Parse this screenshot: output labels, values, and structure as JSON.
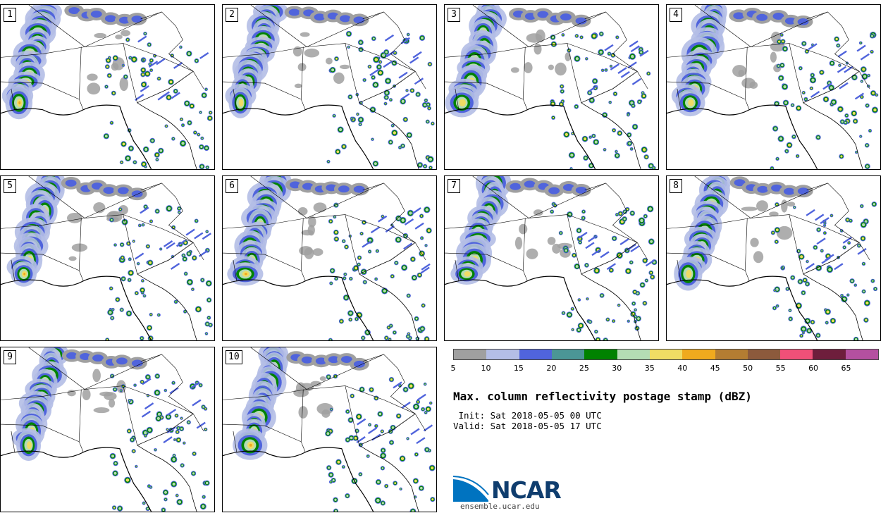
{
  "panels": [
    {
      "label": "1"
    },
    {
      "label": "2"
    },
    {
      "label": "3"
    },
    {
      "label": "4"
    },
    {
      "label": "5"
    },
    {
      "label": "6"
    },
    {
      "label": "7"
    },
    {
      "label": "8"
    },
    {
      "label": "9"
    },
    {
      "label": "10"
    }
  ],
  "legend": {
    "ticks": [
      "5",
      "10",
      "15",
      "20",
      "25",
      "30",
      "35",
      "40",
      "45",
      "50",
      "55",
      "60",
      "65"
    ],
    "colors": [
      "#a0a0a0",
      "#b4bee6",
      "#5064dc",
      "#4b9696",
      "#008200",
      "#b4dcb4",
      "#f0dc64",
      "#f0aa1e",
      "#b47d32",
      "#8c5a3c",
      "#f05078",
      "#6e1e3c",
      "#b450a0"
    ]
  },
  "title": "Max. column reflectivity postage stamp (dBZ)",
  "init_line": " Init: Sat 2018-05-05 00 UTC",
  "valid_line": "Valid: Sat 2018-05-05 17 UTC",
  "logo": {
    "text": "NCAR",
    "url": "ensemble.ucar.edu",
    "color": "#0073c0"
  }
}
